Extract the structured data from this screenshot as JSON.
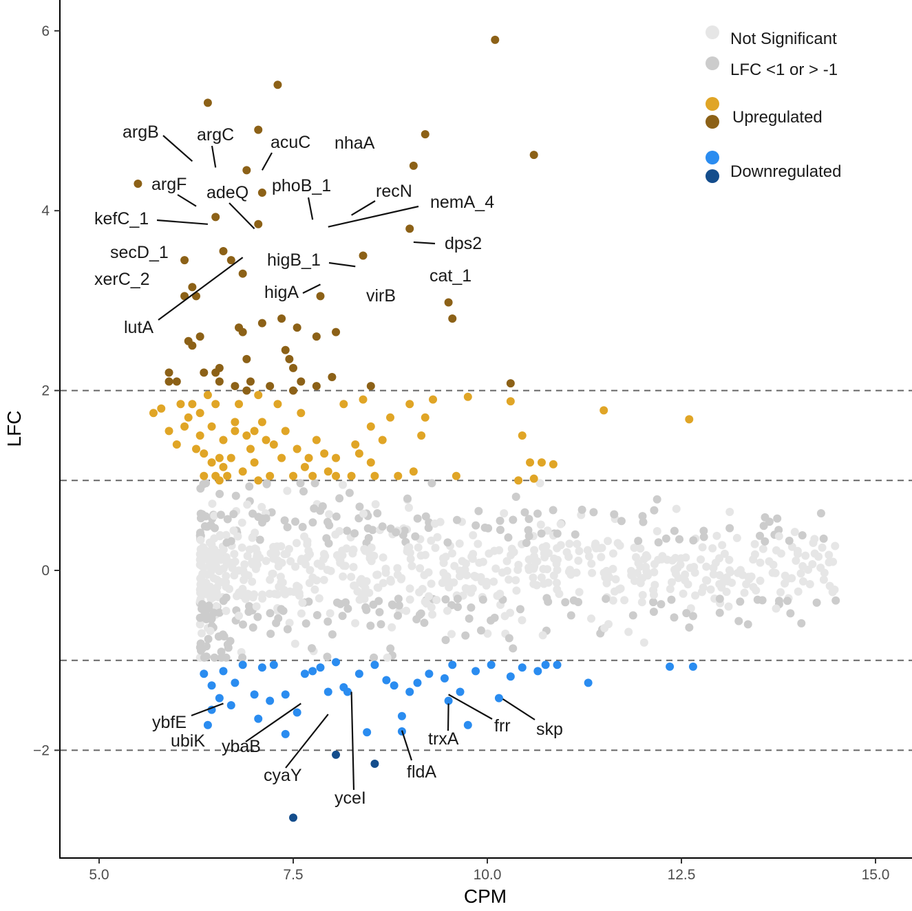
{
  "chart_data": {
    "type": "scatter",
    "title": "",
    "xlabel": "CPM",
    "ylabel": "LFC",
    "xlim": [
      4.5,
      15.2
    ],
    "ylim": [
      -3.2,
      6.4
    ],
    "xticks": [
      5.0,
      7.5,
      10.0,
      12.5,
      15.0
    ],
    "xtick_labels": [
      "5.0",
      "7.5",
      "10.0",
      "12.5",
      "15.0"
    ],
    "yticks": [
      -2,
      0,
      2,
      4,
      6
    ],
    "ytick_labels": [
      "−2",
      "0",
      "2",
      "4",
      "6"
    ],
    "reference_lines_y": [
      -2,
      -1,
      1,
      2
    ],
    "grid": false,
    "legend_position": "top-right",
    "legend": [
      {
        "label": "Not Significant",
        "colors": [
          "#e6e6e6"
        ]
      },
      {
        "label": "LFC <1 or > -1",
        "colors": [
          "#cccccc"
        ]
      },
      {
        "label": "Upregulated",
        "colors": [
          "#e0a526",
          "#8c6117"
        ]
      },
      {
        "label": "Downregulated",
        "colors": [
          "#2a8cf0",
          "#144d8c"
        ]
      }
    ],
    "colors": {
      "not_significant": "#e6e6e6",
      "small_lfc": "#cccccc",
      "up_light": "#e0a526",
      "up_dark": "#8c6117",
      "down_light": "#2a8cf0",
      "down_dark": "#144d8c",
      "reference_line": "#666666"
    },
    "series": [
      {
        "name": "Upregulated (LFC > 2)",
        "color": "#8c6117",
        "points": [
          [
            5.5,
            4.3
          ],
          [
            5.9,
            2.2
          ],
          [
            5.9,
            2.1
          ],
          [
            6.0,
            2.1
          ],
          [
            6.1,
            3.45
          ],
          [
            6.15,
            2.55
          ],
          [
            6.2,
            3.15
          ],
          [
            6.2,
            2.5
          ],
          [
            6.3,
            2.6
          ],
          [
            6.35,
            2.2
          ],
          [
            6.1,
            3.05
          ],
          [
            6.4,
            5.2
          ],
          [
            6.55,
            2.25
          ],
          [
            6.6,
            3.55
          ],
          [
            6.5,
            3.93
          ],
          [
            6.75,
            2.05
          ],
          [
            6.7,
            3.45
          ],
          [
            6.8,
            2.7
          ],
          [
            6.85,
            3.3
          ],
          [
            6.9,
            2.0
          ],
          [
            6.9,
            2.35
          ],
          [
            6.9,
            4.45
          ],
          [
            6.95,
            2.1
          ],
          [
            7.05,
            3.85
          ],
          [
            7.1,
            2.75
          ],
          [
            7.2,
            2.05
          ],
          [
            7.3,
            5.4
          ],
          [
            7.35,
            2.8
          ],
          [
            7.4,
            2.45
          ],
          [
            7.45,
            2.35
          ],
          [
            7.5,
            2.25
          ],
          [
            7.55,
            2.7
          ],
          [
            7.6,
            2.1
          ],
          [
            7.8,
            2.6
          ],
          [
            7.8,
            2.05
          ],
          [
            7.85,
            3.05
          ],
          [
            8.0,
            2.15
          ],
          [
            8.05,
            2.65
          ],
          [
            8.4,
            3.5
          ],
          [
            8.5,
            2.05
          ],
          [
            9.0,
            3.8
          ],
          [
            9.05,
            4.5
          ],
          [
            9.2,
            4.85
          ],
          [
            9.5,
            2.98
          ],
          [
            9.55,
            2.8
          ],
          [
            10.1,
            5.9
          ],
          [
            10.3,
            2.08
          ],
          [
            10.6,
            4.62
          ],
          [
            7.05,
            4.9
          ],
          [
            6.85,
            2.65
          ],
          [
            6.55,
            2.1
          ],
          [
            6.25,
            3.05
          ],
          [
            6.5,
            2.2
          ],
          [
            7.1,
            4.2
          ],
          [
            7.5,
            2.0
          ]
        ]
      },
      {
        "name": "Upregulated (1 < LFC < 2)",
        "color": "#e0a526",
        "points": [
          [
            5.7,
            1.75
          ],
          [
            5.8,
            1.8
          ],
          [
            5.9,
            1.55
          ],
          [
            6.0,
            1.4
          ],
          [
            6.05,
            1.85
          ],
          [
            6.1,
            1.6
          ],
          [
            6.15,
            1.7
          ],
          [
            6.2,
            1.85
          ],
          [
            6.25,
            1.35
          ],
          [
            6.3,
            1.5
          ],
          [
            6.3,
            1.75
          ],
          [
            6.35,
            1.3
          ],
          [
            6.4,
            1.95
          ],
          [
            6.45,
            1.2
          ],
          [
            6.45,
            1.6
          ],
          [
            6.5,
            1.85
          ],
          [
            6.5,
            1.05
          ],
          [
            6.55,
            1.25
          ],
          [
            6.6,
            1.45
          ],
          [
            6.6,
            1.15
          ],
          [
            6.65,
            1.05
          ],
          [
            6.7,
            1.25
          ],
          [
            6.75,
            1.65
          ],
          [
            6.8,
            1.85
          ],
          [
            6.85,
            1.1
          ],
          [
            6.9,
            1.5
          ],
          [
            6.95,
            1.35
          ],
          [
            7.0,
            1.55
          ],
          [
            7.0,
            1.2
          ],
          [
            7.05,
            1.95
          ],
          [
            7.1,
            1.65
          ],
          [
            7.15,
            1.45
          ],
          [
            7.2,
            1.05
          ],
          [
            7.3,
            1.85
          ],
          [
            7.35,
            1.25
          ],
          [
            7.4,
            1.55
          ],
          [
            7.5,
            1.05
          ],
          [
            7.55,
            1.35
          ],
          [
            7.6,
            1.75
          ],
          [
            7.7,
            1.25
          ],
          [
            7.75,
            1.05
          ],
          [
            7.8,
            1.45
          ],
          [
            7.9,
            1.3
          ],
          [
            7.95,
            1.1
          ],
          [
            8.05,
            1.25
          ],
          [
            8.15,
            1.85
          ],
          [
            8.25,
            1.05
          ],
          [
            8.3,
            1.4
          ],
          [
            8.35,
            1.3
          ],
          [
            8.4,
            1.9
          ],
          [
            8.5,
            1.6
          ],
          [
            8.55,
            1.05
          ],
          [
            8.65,
            1.45
          ],
          [
            8.75,
            1.7
          ],
          [
            8.85,
            1.05
          ],
          [
            9.0,
            1.85
          ],
          [
            9.05,
            1.1
          ],
          [
            9.15,
            1.5
          ],
          [
            9.3,
            1.9
          ],
          [
            9.6,
            1.05
          ],
          [
            9.75,
            1.93
          ],
          [
            10.3,
            1.88
          ],
          [
            10.4,
            1.0
          ],
          [
            10.45,
            1.5
          ],
          [
            10.55,
            1.2
          ],
          [
            10.7,
            1.2
          ],
          [
            10.85,
            1.18
          ],
          [
            11.5,
            1.78
          ],
          [
            12.6,
            1.68
          ],
          [
            6.35,
            1.05
          ],
          [
            6.55,
            1.0
          ],
          [
            6.75,
            1.55
          ],
          [
            7.05,
            1.0
          ],
          [
            7.25,
            1.4
          ],
          [
            7.65,
            1.15
          ],
          [
            8.05,
            1.05
          ],
          [
            8.5,
            1.2
          ],
          [
            9.2,
            1.7
          ],
          [
            10.6,
            1.02
          ]
        ]
      },
      {
        "name": "Downregulated (-2 < LFC < -1)",
        "color": "#2a8cf0",
        "points": [
          [
            6.35,
            -1.15
          ],
          [
            6.45,
            -1.28
          ],
          [
            6.55,
            -1.42
          ],
          [
            6.6,
            -1.12
          ],
          [
            6.7,
            -1.5
          ],
          [
            6.75,
            -1.25
          ],
          [
            6.85,
            -1.05
          ],
          [
            7.0,
            -1.38
          ],
          [
            7.05,
            -1.65
          ],
          [
            7.1,
            -1.08
          ],
          [
            7.2,
            -1.45
          ],
          [
            7.25,
            -1.05
          ],
          [
            7.4,
            -1.38
          ],
          [
            7.55,
            -1.58
          ],
          [
            7.65,
            -1.15
          ],
          [
            7.75,
            -1.12
          ],
          [
            7.85,
            -1.08
          ],
          [
            7.95,
            -1.35
          ],
          [
            8.05,
            -1.02
          ],
          [
            8.15,
            -1.3
          ],
          [
            8.2,
            -1.35
          ],
          [
            8.35,
            -1.15
          ],
          [
            8.45,
            -1.8
          ],
          [
            8.55,
            -1.05
          ],
          [
            8.7,
            -1.22
          ],
          [
            8.8,
            -1.28
          ],
          [
            8.9,
            -1.62
          ],
          [
            9.0,
            -1.35
          ],
          [
            9.1,
            -1.25
          ],
          [
            9.25,
            -1.15
          ],
          [
            9.5,
            -1.45
          ],
          [
            9.55,
            -1.05
          ],
          [
            9.65,
            -1.35
          ],
          [
            9.75,
            -1.72
          ],
          [
            9.85,
            -1.12
          ],
          [
            10.05,
            -1.05
          ],
          [
            10.15,
            -1.42
          ],
          [
            10.3,
            -1.18
          ],
          [
            10.45,
            -1.08
          ],
          [
            10.65,
            -1.12
          ],
          [
            10.75,
            -1.05
          ],
          [
            10.9,
            -1.05
          ],
          [
            11.3,
            -1.25
          ],
          [
            12.35,
            -1.07
          ],
          [
            12.65,
            -1.07
          ],
          [
            6.4,
            -1.72
          ],
          [
            6.45,
            -1.55
          ],
          [
            7.4,
            -1.82
          ],
          [
            8.9,
            -1.79
          ],
          [
            9.45,
            -1.2
          ]
        ]
      },
      {
        "name": "Downregulated (LFC < -2)",
        "color": "#144d8c",
        "points": [
          [
            7.5,
            -2.75
          ],
          [
            8.05,
            -2.05
          ],
          [
            8.55,
            -2.15
          ]
        ]
      }
    ],
    "annotations": [
      {
        "label": "argB",
        "x": 6.2,
        "y": 4.55
      },
      {
        "label": "argC",
        "x": 6.5,
        "y": 4.48
      },
      {
        "label": "acuC",
        "x": 7.1,
        "y": 4.45
      },
      {
        "label": "nhaA",
        "x": 8.35,
        "y": 4.63
      },
      {
        "label": "argF",
        "x": 6.25,
        "y": 4.05
      },
      {
        "label": "adeQ",
        "x": 7.0,
        "y": 3.8
      },
      {
        "label": "phoB_1",
        "x": 7.75,
        "y": 3.9
      },
      {
        "label": "recN",
        "x": 8.25,
        "y": 3.95
      },
      {
        "label": "nemA_4",
        "x": 7.95,
        "y": 3.82
      },
      {
        "label": "kefC_1",
        "x": 6.4,
        "y": 3.85
      },
      {
        "label": "dps2",
        "x": 9.05,
        "y": 3.65
      },
      {
        "label": "secD_1",
        "x": 6.15,
        "y": 3.45
      },
      {
        "label": "higB_1",
        "x": 8.3,
        "y": 3.38
      },
      {
        "label": "xerC_2",
        "x": 6.0,
        "y": 3.22
      },
      {
        "label": "cat_1",
        "x": 9.15,
        "y": 3.27
      },
      {
        "label": "higA",
        "x": 7.85,
        "y": 3.18
      },
      {
        "label": "virB",
        "x": 8.65,
        "y": 2.92
      },
      {
        "label": "lutA",
        "x": 6.85,
        "y": 3.48
      },
      {
        "label": "ybfE",
        "x": 6.6,
        "y": -1.48
      },
      {
        "label": "ubiK",
        "x": 6.4,
        "y": -1.75
      },
      {
        "label": "ybaB",
        "x": 7.6,
        "y": -1.48
      },
      {
        "label": "cyaY",
        "x": 7.95,
        "y": -1.6
      },
      {
        "label": "yceI",
        "x": 8.25,
        "y": -1.35
      },
      {
        "label": "fldA",
        "x": 8.9,
        "y": -1.78
      },
      {
        "label": "trxA",
        "x": 9.5,
        "y": -1.48
      },
      {
        "label": "frr",
        "x": 9.5,
        "y": -1.38
      },
      {
        "label": "skp",
        "x": 10.2,
        "y": -1.43
      }
    ]
  }
}
